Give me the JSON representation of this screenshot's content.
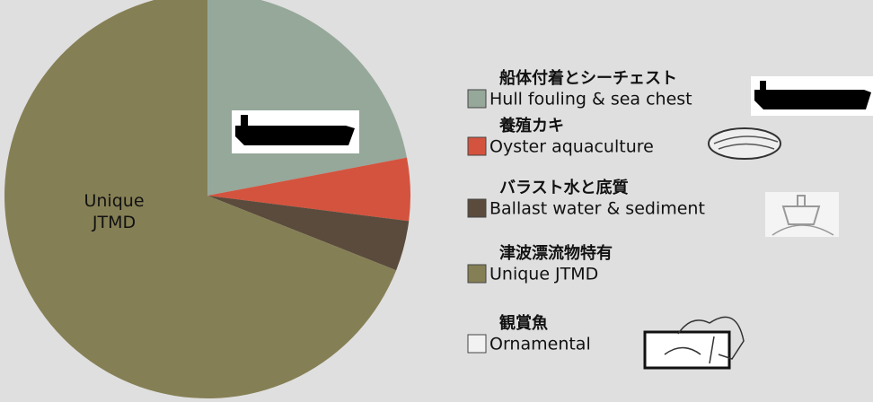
{
  "chart_data": {
    "type": "pie",
    "categories": [
      "Hull fouling & sea chest",
      "Oyster aquaculture",
      "Ballast water & sediment",
      "Unique JTMD",
      "Ornamental"
    ],
    "categories_ja": [
      "船体付着とシーチェスト",
      "養殖カキ",
      "バラスト水と底質",
      "津波漂流物特有",
      "観賞魚"
    ],
    "values": [
      22,
      5,
      4,
      69,
      0
    ],
    "colors": [
      "#95a89a",
      "#d4533e",
      "#5a4b3c",
      "#857f55",
      "#f2f2f2"
    ]
  }
}
